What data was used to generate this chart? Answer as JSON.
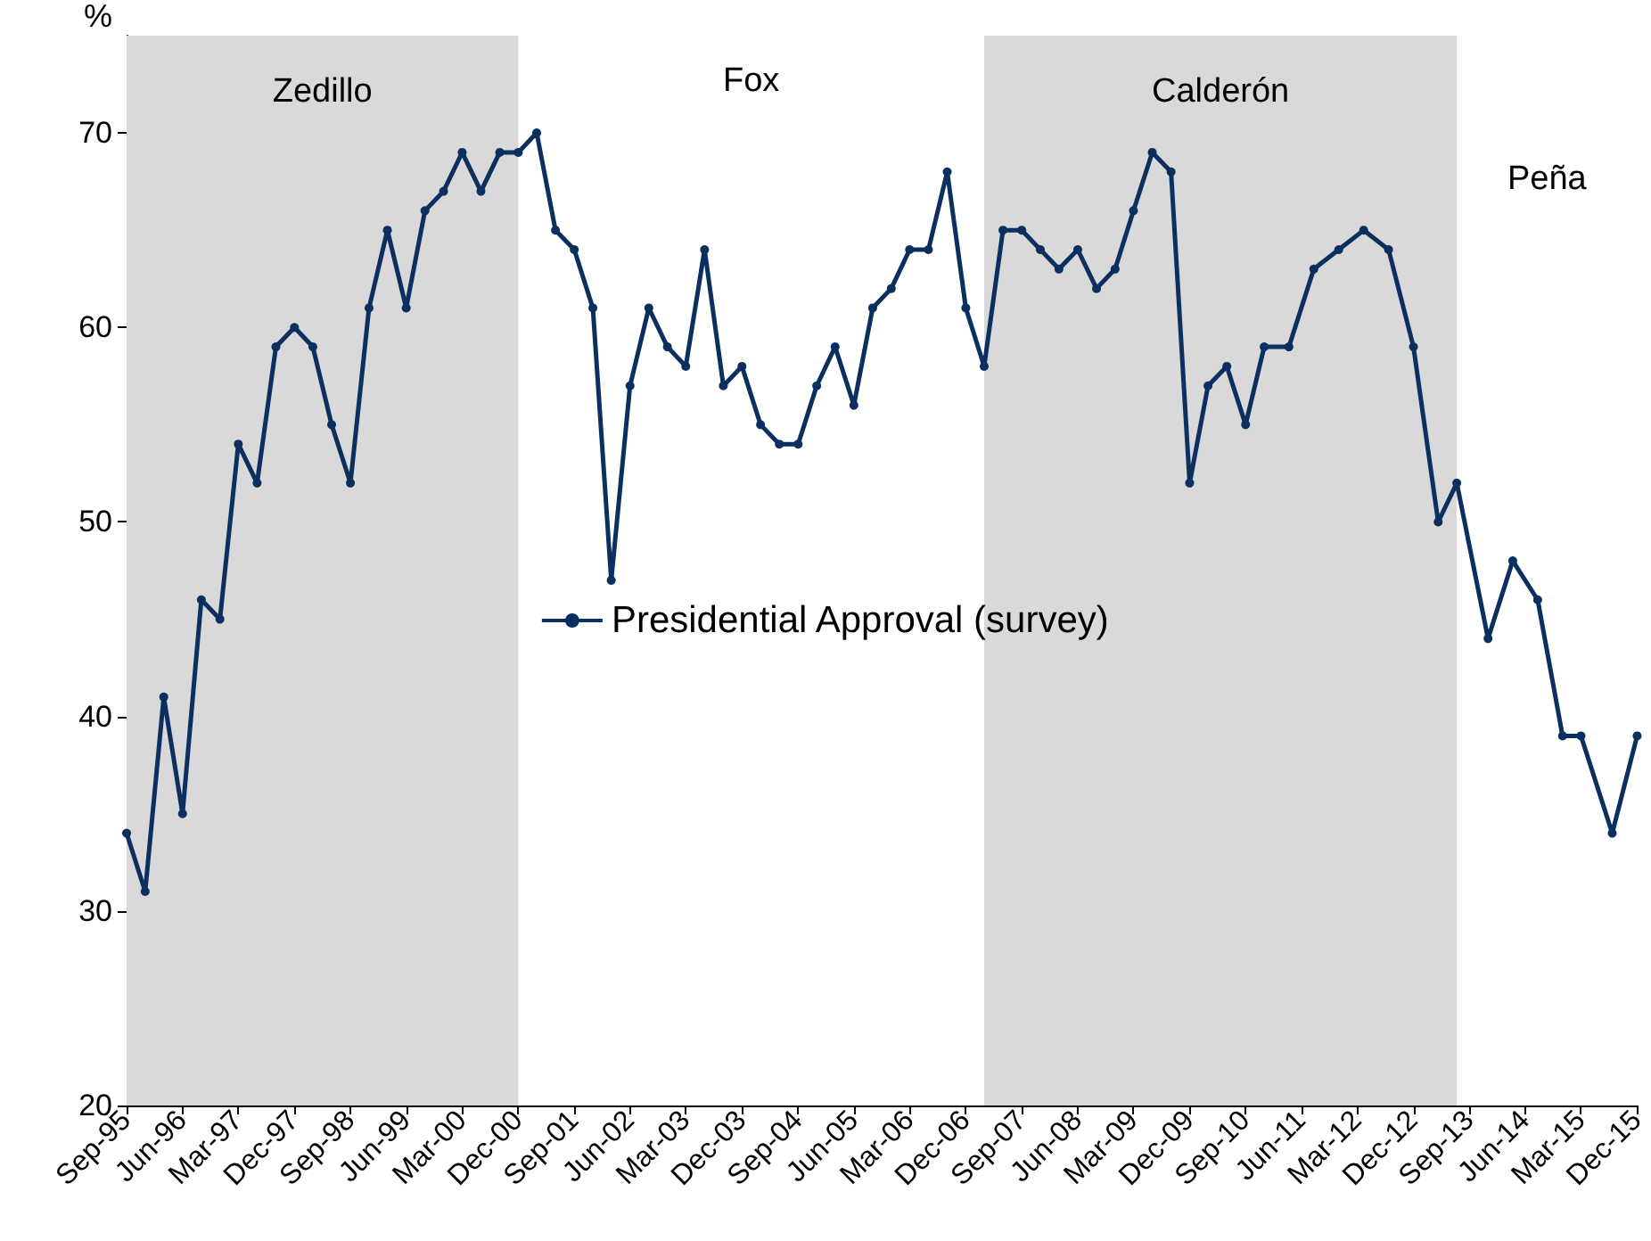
{
  "chart_data": {
    "type": "line",
    "ylabel": "%",
    "x": [
      "1995-09",
      "1995-12",
      "1996-03",
      "1996-06",
      "1996-09",
      "1996-12",
      "1997-03",
      "1997-06",
      "1997-09",
      "1997-12",
      "1998-03",
      "1998-06",
      "1998-09",
      "1998-12",
      "1999-03",
      "1999-06",
      "1999-09",
      "1999-12",
      "2000-03",
      "2000-06",
      "2000-09",
      "2000-12",
      "2001-03",
      "2001-06",
      "2001-09",
      "2001-12",
      "2002-03",
      "2002-06",
      "2002-09",
      "2002-12",
      "2003-03",
      "2003-06",
      "2003-09",
      "2003-12",
      "2004-03",
      "2004-06",
      "2004-09",
      "2004-12",
      "2005-03",
      "2005-06",
      "2005-09",
      "2005-12",
      "2006-03",
      "2006-06",
      "2006-09",
      "2006-12",
      "2007-03",
      "2007-06",
      "2007-09",
      "2007-12",
      "2008-03",
      "2008-06",
      "2008-09",
      "2008-12",
      "2009-03",
      "2009-06",
      "2009-09",
      "2009-12",
      "2010-03",
      "2010-06",
      "2010-09",
      "2010-12",
      "2011-04",
      "2011-08",
      "2011-12",
      "2012-04",
      "2012-08",
      "2012-12",
      "2013-04",
      "2013-07",
      "2013-12",
      "2014-04",
      "2014-08",
      "2014-12",
      "2015-03",
      "2015-08",
      "2015-12"
    ],
    "series": [
      {
        "name": "Presidential Approval (survey)",
        "color": "#0b2f5f",
        "values": [
          34,
          31,
          41,
          35,
          46,
          45,
          54,
          52,
          59,
          60,
          59,
          55,
          52,
          61,
          65,
          61,
          66,
          67,
          69,
          67,
          69,
          69,
          70,
          65,
          64,
          61,
          47,
          57,
          61,
          59,
          58,
          64,
          57,
          58,
          55,
          54,
          54,
          57,
          59,
          56,
          61,
          62,
          64,
          64,
          68,
          61,
          58,
          65,
          65,
          64,
          63,
          64,
          62,
          63,
          66,
          69,
          68,
          52,
          57,
          58,
          55,
          59,
          59,
          63,
          64,
          65,
          64,
          59,
          50,
          52,
          44,
          48,
          46,
          39,
          39,
          34,
          39
        ]
      }
    ],
    "xlim": [
      "1995-09",
      "2015-12"
    ],
    "xticks": [
      {
        "value": "1995-09",
        "label": "Sep-95"
      },
      {
        "value": "1996-06",
        "label": "Jun-96"
      },
      {
        "value": "1997-03",
        "label": "Mar-97"
      },
      {
        "value": "1997-12",
        "label": "Dec-97"
      },
      {
        "value": "1998-09",
        "label": "Sep-98"
      },
      {
        "value": "1999-06",
        "label": "Jun-99"
      },
      {
        "value": "2000-03",
        "label": "Mar-00"
      },
      {
        "value": "2000-12",
        "label": "Dec-00"
      },
      {
        "value": "2001-09",
        "label": "Sep-01"
      },
      {
        "value": "2002-06",
        "label": "Jun-02"
      },
      {
        "value": "2003-03",
        "label": "Mar-03"
      },
      {
        "value": "2003-12",
        "label": "Dec-03"
      },
      {
        "value": "2004-09",
        "label": "Sep-04"
      },
      {
        "value": "2005-06",
        "label": "Jun-05"
      },
      {
        "value": "2006-03",
        "label": "Mar-06"
      },
      {
        "value": "2006-12",
        "label": "Dec-06"
      },
      {
        "value": "2007-09",
        "label": "Sep-07"
      },
      {
        "value": "2008-06",
        "label": "Jun-08"
      },
      {
        "value": "2009-03",
        "label": "Mar-09"
      },
      {
        "value": "2009-12",
        "label": "Dec-09"
      },
      {
        "value": "2010-09",
        "label": "Sep-10"
      },
      {
        "value": "2011-06",
        "label": "Jun-11"
      },
      {
        "value": "2012-03",
        "label": "Mar-12"
      },
      {
        "value": "2012-12",
        "label": "Dec-12"
      },
      {
        "value": "2013-09",
        "label": "Sep-13"
      },
      {
        "value": "2014-06",
        "label": "Jun-14"
      },
      {
        "value": "2015-03",
        "label": "Mar-15"
      },
      {
        "value": "2015-12",
        "label": "Dec-15"
      }
    ],
    "ylim": [
      20,
      75
    ],
    "yticks": [
      20,
      30,
      40,
      50,
      60,
      70
    ],
    "bands": [
      {
        "axis": "x",
        "from": "1995-09",
        "to": "2000-12",
        "label": "Zedillo",
        "color": "#d9d9d9"
      },
      {
        "axis": "x",
        "from": "2007-03",
        "to": "2013-07",
        "label": "Calderón",
        "color": "#d9d9d9"
      }
    ],
    "annotations": [
      "Fox",
      "Peña"
    ],
    "grid": false,
    "legend": "center",
    "marker": "circle",
    "line_style": "solid"
  }
}
